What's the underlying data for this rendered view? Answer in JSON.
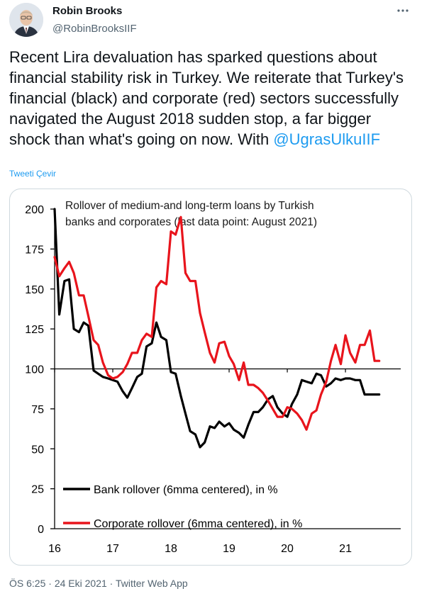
{
  "tweet": {
    "author_name": "Robin Brooks",
    "author_handle": "@RobinBrooksIIF",
    "text_part1": "Recent Lira devaluation has sparked questions about financial stability risk in Turkey. We reiterate that Turkey's financial (black) and corporate (red) sectors successfully navigated the August 2018 sudden stop, a far bigger shock than what's going on now. With ",
    "mention": "@UgrasUlkuIIF",
    "translate": "Tweeti Çevir",
    "time": "ÖS 6:25",
    "date": "24 Eki 2021",
    "app": "Twitter Web App",
    "dot": "·"
  },
  "chart_data": {
    "type": "line",
    "title_line1": "Rollover of medium-and long-term loans by Turkish",
    "title_line2": "banks and corporates (last data point: August 2021)",
    "ylim": [
      0,
      200
    ],
    "yticks": [
      "200",
      "175",
      "150",
      "125",
      "100",
      "75",
      "50",
      "25",
      "0"
    ],
    "xlim": [
      2016,
      2021.95
    ],
    "xticks": [
      "16",
      "17",
      "18",
      "19",
      "20",
      "21"
    ],
    "reference_line": 100,
    "series": [
      {
        "name": "Bank rollover (6mma centered), in %",
        "color": "#000000",
        "x": [
          2016.0,
          2016.08,
          2016.17,
          2016.25,
          2016.33,
          2016.42,
          2016.5,
          2016.58,
          2016.67,
          2016.75,
          2016.83,
          2016.92,
          2017.0,
          2017.08,
          2017.17,
          2017.25,
          2017.33,
          2017.42,
          2017.5,
          2017.58,
          2017.67,
          2017.75,
          2017.83,
          2017.92,
          2018.0,
          2018.08,
          2018.17,
          2018.25,
          2018.33,
          2018.42,
          2018.5,
          2018.58,
          2018.67,
          2018.75,
          2018.83,
          2018.92,
          2019.0,
          2019.08,
          2019.17,
          2019.25,
          2019.33,
          2019.42,
          2019.5,
          2019.58,
          2019.67,
          2019.75,
          2019.83,
          2019.92,
          2020.0,
          2020.08,
          2020.17,
          2020.25,
          2020.33,
          2020.42,
          2020.5,
          2020.58,
          2020.67,
          2020.75,
          2020.83,
          2020.92,
          2021.0,
          2021.08,
          2021.17,
          2021.25,
          2021.33,
          2021.42,
          2021.5,
          2021.58
        ],
        "values": [
          200,
          134,
          155,
          156,
          125,
          123,
          129,
          127,
          99,
          97,
          95,
          94,
          93,
          92,
          86,
          82,
          88,
          95,
          97,
          114,
          116,
          129,
          120,
          118,
          98,
          97,
          83,
          72,
          61,
          59,
          51,
          54,
          64,
          63,
          67,
          64,
          66,
          62,
          60,
          57,
          65,
          73,
          73,
          76,
          81,
          83,
          76,
          72,
          70,
          78,
          84,
          93,
          92,
          91,
          97,
          96,
          89,
          91,
          94,
          93,
          94,
          94,
          93,
          93,
          84,
          84,
          84,
          84
        ]
      },
      {
        "name": "Corporate rollover (6mma centered), in %",
        "color": "#e8141c",
        "x": [
          2016.0,
          2016.08,
          2016.17,
          2016.25,
          2016.33,
          2016.42,
          2016.5,
          2016.58,
          2016.67,
          2016.75,
          2016.83,
          2016.92,
          2017.0,
          2017.08,
          2017.17,
          2017.25,
          2017.33,
          2017.42,
          2017.5,
          2017.58,
          2017.67,
          2017.75,
          2017.83,
          2017.92,
          2018.0,
          2018.08,
          2018.17,
          2018.25,
          2018.33,
          2018.42,
          2018.5,
          2018.58,
          2018.67,
          2018.75,
          2018.83,
          2018.92,
          2019.0,
          2019.08,
          2019.17,
          2019.25,
          2019.33,
          2019.42,
          2019.5,
          2019.58,
          2019.67,
          2019.75,
          2019.83,
          2019.92,
          2020.0,
          2020.08,
          2020.17,
          2020.25,
          2020.33,
          2020.42,
          2020.5,
          2020.58,
          2020.67,
          2020.75,
          2020.83,
          2020.92,
          2021.0,
          2021.08,
          2021.17,
          2021.25,
          2021.33,
          2021.42,
          2021.5,
          2021.58
        ],
        "values": [
          170,
          158,
          163,
          167,
          160,
          146,
          146,
          133,
          118,
          115,
          104,
          96,
          94,
          95,
          98,
          103,
          110,
          110,
          118,
          122,
          120,
          151,
          155,
          153,
          186,
          184,
          195,
          160,
          155,
          155,
          135,
          123,
          110,
          104,
          116,
          117,
          108,
          103,
          93,
          104,
          90,
          90,
          88,
          85,
          80,
          75,
          70,
          70,
          76,
          75,
          72,
          68,
          62,
          72,
          74,
          84,
          92,
          105,
          115,
          103,
          121,
          110,
          104,
          115,
          115,
          124,
          105,
          105
        ]
      }
    ]
  }
}
